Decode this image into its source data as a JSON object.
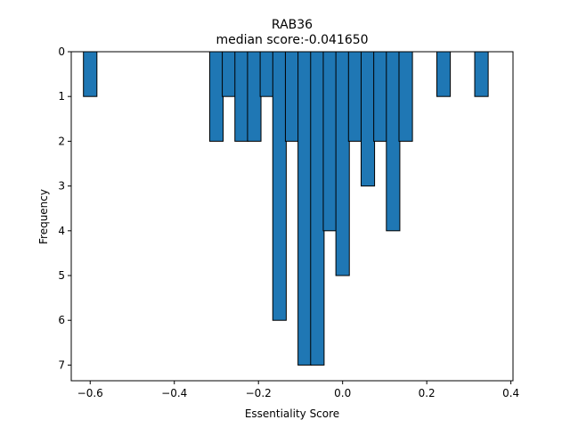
{
  "chart_data": {
    "type": "bar",
    "title": "RAB36",
    "subtitle": "median score:-0.041650",
    "xlabel": "Essentiality Score",
    "ylabel": "Frequency",
    "xlim": [
      -0.645,
      0.405
    ],
    "ylim": [
      0,
      7.35
    ],
    "y_axis_inverted": true,
    "x_ticks": [
      -0.6,
      -0.4,
      -0.2,
      0.0,
      0.2,
      0.4
    ],
    "x_tick_labels": [
      "−0.6",
      "−0.4",
      "−0.2",
      "0.0",
      "0.2",
      "0.4"
    ],
    "y_ticks": [
      0,
      1,
      2,
      3,
      4,
      5,
      6,
      7
    ],
    "y_tick_labels": [
      "0",
      "1",
      "2",
      "3",
      "4",
      "5",
      "6",
      "7"
    ],
    "bin_width": 0.032,
    "bins": [
      {
        "x": -0.6,
        "count": 1
      },
      {
        "x": -0.3,
        "count": 2
      },
      {
        "x": -0.27,
        "count": 1
      },
      {
        "x": -0.24,
        "count": 2
      },
      {
        "x": -0.21,
        "count": 2
      },
      {
        "x": -0.18,
        "count": 1
      },
      {
        "x": -0.15,
        "count": 6
      },
      {
        "x": -0.12,
        "count": 2
      },
      {
        "x": -0.09,
        "count": 7
      },
      {
        "x": -0.06,
        "count": 7
      },
      {
        "x": -0.03,
        "count": 4
      },
      {
        "x": 0.0,
        "count": 5
      },
      {
        "x": 0.03,
        "count": 2
      },
      {
        "x": 0.06,
        "count": 3
      },
      {
        "x": 0.09,
        "count": 2
      },
      {
        "x": 0.12,
        "count": 4
      },
      {
        "x": 0.15,
        "count": 2
      },
      {
        "x": 0.24,
        "count": 1
      },
      {
        "x": 0.33,
        "count": 1
      }
    ],
    "grid": false,
    "colors": {
      "bar_fill": "#1f77b4",
      "bar_edge": "#000000"
    }
  }
}
